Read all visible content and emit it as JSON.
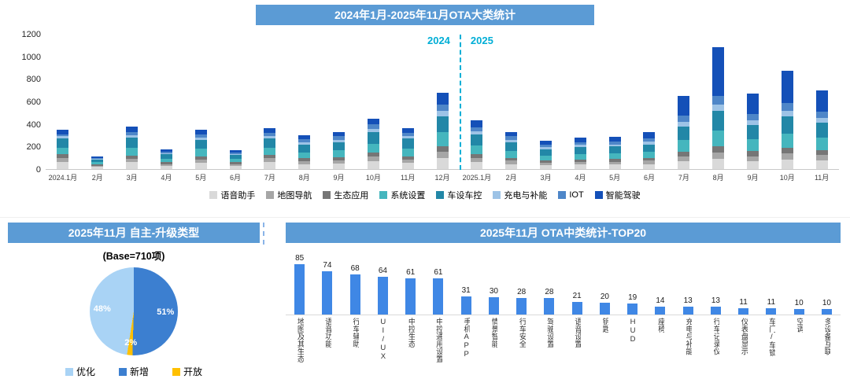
{
  "theme": {
    "banner_bg": "#5b9bd5",
    "banner_text": "#ffffff",
    "year_divider_color": "#00aed6"
  },
  "chart_data": [
    {
      "type": "bar",
      "stacked": true,
      "title": "2024年1月-2025年11月OTA大类统计",
      "categories": [
        "2024.1月",
        "2月",
        "3月",
        "4月",
        "5月",
        "6月",
        "7月",
        "8月",
        "9月",
        "10月",
        "11月",
        "12月",
        "2025.1月",
        "2月",
        "3月",
        "4月",
        "5月",
        "6月",
        "7月",
        "8月",
        "9月",
        "10月",
        "11月"
      ],
      "series": [
        {
          "name": "语音助手",
          "color": "#d9d9d9",
          "values": [
            60,
            20,
            60,
            30,
            55,
            30,
            60,
            45,
            50,
            70,
            55,
            100,
            60,
            45,
            35,
            40,
            40,
            45,
            70,
            90,
            70,
            85,
            75
          ]
        },
        {
          "name": "地图导航",
          "color": "#a6a6a6",
          "values": [
            40,
            10,
            30,
            15,
            30,
            15,
            35,
            25,
            30,
            40,
            30,
            55,
            35,
            30,
            20,
            25,
            25,
            30,
            45,
            60,
            45,
            55,
            50
          ]
        },
        {
          "name": "生态应用",
          "color": "#767676",
          "values": [
            30,
            10,
            30,
            15,
            30,
            15,
            30,
            25,
            25,
            35,
            30,
            50,
            35,
            25,
            20,
            20,
            25,
            25,
            40,
            55,
            45,
            50,
            45
          ]
        },
        {
          "name": "系统设置",
          "color": "#45b6be",
          "values": [
            60,
            20,
            70,
            30,
            65,
            30,
            65,
            55,
            60,
            80,
            70,
            120,
            80,
            60,
            45,
            50,
            50,
            55,
            100,
            140,
            105,
            125,
            110
          ]
        },
        {
          "name": "车设车控",
          "color": "#2287a7",
          "values": [
            80,
            25,
            90,
            40,
            80,
            35,
            80,
            70,
            75,
            100,
            85,
            140,
            95,
            75,
            55,
            60,
            60,
            65,
            120,
            170,
            125,
            150,
            130
          ]
        },
        {
          "name": "充电与补能",
          "color": "#9dc3e6",
          "values": [
            20,
            5,
            20,
            10,
            20,
            10,
            20,
            20,
            20,
            30,
            20,
            50,
            30,
            25,
            20,
            20,
            20,
            25,
            45,
            60,
            45,
            55,
            45
          ]
        },
        {
          "name": "IOT",
          "color": "#4e86c8",
          "values": [
            20,
            10,
            30,
            15,
            30,
            15,
            30,
            25,
            30,
            40,
            30,
            60,
            35,
            30,
            25,
            25,
            25,
            30,
            55,
            75,
            55,
            65,
            55
          ]
        },
        {
          "name": "智能驾驶",
          "color": "#1450b8",
          "values": [
            40,
            10,
            50,
            20,
            40,
            20,
            40,
            35,
            40,
            55,
            40,
            105,
            60,
            40,
            35,
            40,
            45,
            55,
            175,
            430,
            180,
            285,
            190
          ]
        }
      ],
      "ylim": [
        0,
        1200
      ],
      "yticks": [
        0,
        200,
        400,
        600,
        800,
        1000,
        1200
      ],
      "grid": false,
      "legend_position": "bottom",
      "divider": {
        "after_index": 11,
        "left_label": "2024",
        "right_label": "2025",
        "color": "#00aed6"
      }
    },
    {
      "type": "pie",
      "title": "2025年11月 自主-升级类型",
      "subtitle": "(Base=710项)",
      "slices": [
        {
          "label": "新增",
          "value": 51,
          "display": "51%",
          "color": "#3c7fd0"
        },
        {
          "label": "开放",
          "value": 2,
          "display": "2%",
          "color": "#ffc000"
        },
        {
          "label": "优化",
          "value": 48,
          "display": "48%",
          "color": "#a9d3f5"
        }
      ],
      "legend_order": [
        "优化",
        "新增",
        "开放"
      ]
    },
    {
      "type": "bar",
      "title": "2025年11月 OTA中类统计-TOP20",
      "categories": [
        "地图及其生态",
        "语音功能",
        "行车辅助",
        "UI/UX",
        "中控生态",
        "中控通用设置",
        "手机APP",
        "情景智能",
        "行车安全",
        "驾驶设置",
        "语音设置",
        "钥匙",
        "HUD",
        "座椅",
        "充电与补能",
        "行车记录仪",
        "仪表盘显示",
        "车门/车锁",
        "空调",
        "多设备互联"
      ],
      "values": [
        85,
        74,
        68,
        64,
        61,
        61,
        31,
        30,
        28,
        28,
        21,
        20,
        19,
        14,
        13,
        13,
        11,
        11,
        10,
        10
      ],
      "bar_color": "#3f87e5",
      "data_labels": true,
      "grid": false
    }
  ]
}
